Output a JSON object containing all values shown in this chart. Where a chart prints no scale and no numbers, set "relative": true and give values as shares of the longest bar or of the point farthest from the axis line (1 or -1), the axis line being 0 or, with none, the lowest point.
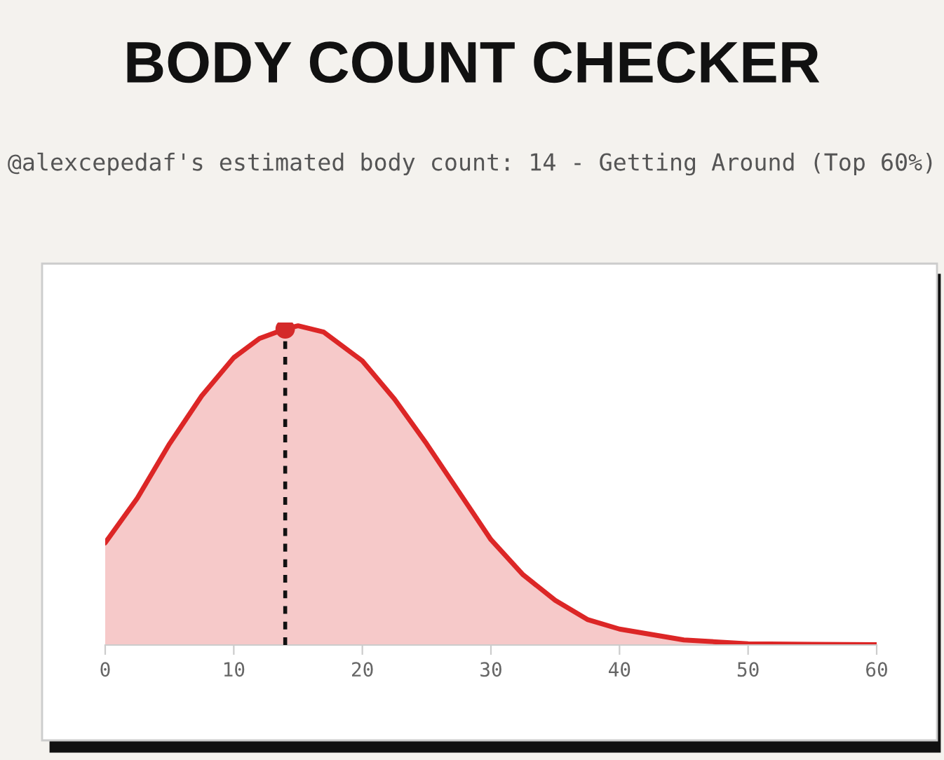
{
  "chart_data": {
    "type": "area",
    "title": "BODY COUNT CHECKER",
    "subtitle": "@alexcepedaf's estimated body count: 14 - Getting Around (Top 60%)",
    "relative": true,
    "xlim": [
      0,
      60
    ],
    "xticks": [
      0,
      10,
      20,
      30,
      40,
      50,
      60
    ],
    "grid": false,
    "legend": false,
    "series": [
      {
        "color": "#dc2626",
        "x": [
          0,
          2.5,
          5,
          7.5,
          10,
          12,
          14,
          15,
          17,
          20,
          22.5,
          25,
          27.5,
          30,
          32.5,
          35,
          37.5,
          40,
          45,
          50,
          55,
          60
        ],
        "values": [
          0.32,
          0.46,
          0.63,
          0.78,
          0.9,
          0.96,
          0.99,
          1.0,
          0.98,
          0.89,
          0.77,
          0.63,
          0.48,
          0.33,
          0.22,
          0.14,
          0.08,
          0.05,
          0.016,
          0.004,
          0.002,
          0.001
        ]
      },
      {
        "type": "scatter",
        "color": "#d42a2a",
        "x": [
          14
        ],
        "values": [
          0.99
        ],
        "marker": "circle"
      }
    ],
    "ref_lines": [
      {
        "axis": "x",
        "value": 14,
        "color": "#111111",
        "line_style": "dotted"
      }
    ]
  }
}
